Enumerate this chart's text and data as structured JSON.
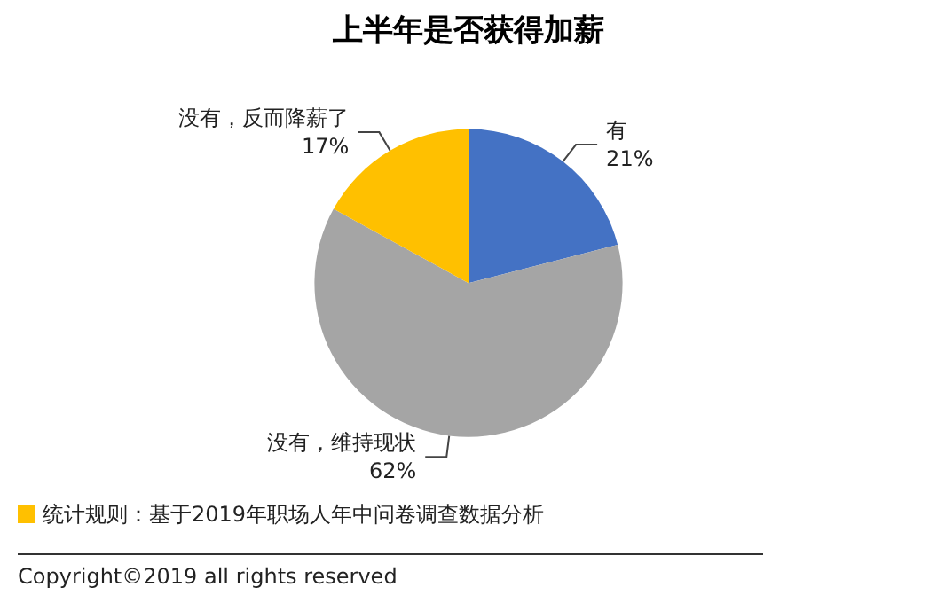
{
  "chart_data": {
    "type": "pie",
    "title": "上半年是否获得加薪",
    "categories": [
      "有",
      "没有，维持现状",
      "没有，反而降薪了"
    ],
    "values": [
      21,
      62,
      17
    ],
    "value_labels": [
      "21%",
      "62%",
      "17%"
    ],
    "colors": [
      "#4472c4",
      "#a5a5a5",
      "#ffc000"
    ],
    "legend": false,
    "annotations": [
      "统计规则：基于2019年职场人年中问卷调查数据分析",
      "Copyright©2019 all rights reserved"
    ]
  }
}
